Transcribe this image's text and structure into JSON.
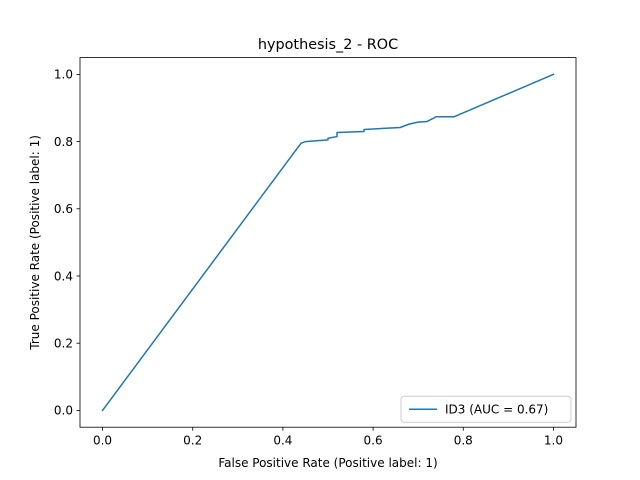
{
  "chart_data": {
    "type": "line",
    "title": "hypothesis_2 - ROC",
    "xlabel": "False Positive Rate (Positive label: 1)",
    "ylabel": "True Positive Rate (Positive label: 1)",
    "xlim": [
      -0.05,
      1.05
    ],
    "ylim": [
      -0.05,
      1.05
    ],
    "xticks": [
      "0.0",
      "0.2",
      "0.4",
      "0.6",
      "0.8",
      "1.0"
    ],
    "yticks": [
      "0.0",
      "0.2",
      "0.4",
      "0.6",
      "0.8",
      "1.0"
    ],
    "grid": false,
    "legend_position": "lower-right",
    "series": [
      {
        "name": "ID3 (AUC = 0.67)",
        "color": "#1f77b4",
        "x": [
          0.0,
          0.44,
          0.45,
          0.5,
          0.5,
          0.52,
          0.52,
          0.58,
          0.58,
          0.66,
          0.68,
          0.7,
          0.72,
          0.74,
          0.78,
          1.0
        ],
        "y": [
          0.0,
          0.795,
          0.8,
          0.805,
          0.81,
          0.815,
          0.827,
          0.83,
          0.836,
          0.842,
          0.852,
          0.858,
          0.86,
          0.874,
          0.874,
          1.0
        ]
      }
    ]
  }
}
